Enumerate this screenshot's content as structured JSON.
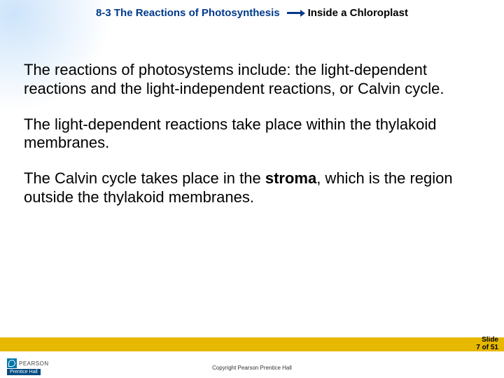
{
  "header": {
    "left": "8-3 The Reactions of Photosynthesis",
    "right": "Inside a Chloroplast"
  },
  "paragraphs": {
    "p1_a": "The reactions of photosystems include: the light-dependent reactions and the light-independent reactions, or Calvin cycle.",
    "p2_a": "The light-dependent reactions take place within the thylakoid membranes.",
    "p3_a": "The Calvin cycle takes place in the ",
    "p3_bold": "stroma",
    "p3_b": ", which is the region outside the thylakoid membranes."
  },
  "footer": {
    "slide_label": "Slide",
    "slide_num": "7 of 51",
    "copyright": "Copyright Pearson Prentice Hall",
    "pearson": "PEARSON",
    "prentice_top": "Prentice",
    "prentice_bot": "Hall"
  },
  "colors": {
    "accent_blue": "#003a8c",
    "footer_bar": "#e6b800"
  }
}
